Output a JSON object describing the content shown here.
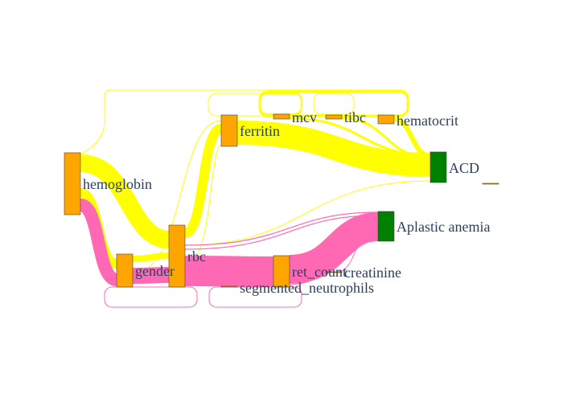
{
  "colors": {
    "feature_node": "#FFA500",
    "class_node": "#008000",
    "flow_acd": "#FFFF00",
    "flow_aplastic": "#FF69B4",
    "label": "#2a3f5f"
  },
  "nodes": {
    "hemoglobin": "hemoglobin",
    "gender": "gender",
    "rbc": "rbc",
    "ferritin": "ferritin",
    "mcv": "mcv",
    "tibc": "tibc",
    "hematocrit": "hematocrit",
    "ret_count": "ret_count",
    "segmented_neutrophils": "segmented_neutrophils",
    "creatinine": "creatinine",
    "acd": "ACD",
    "aplastic_anemia": "Aplastic anemia"
  }
}
